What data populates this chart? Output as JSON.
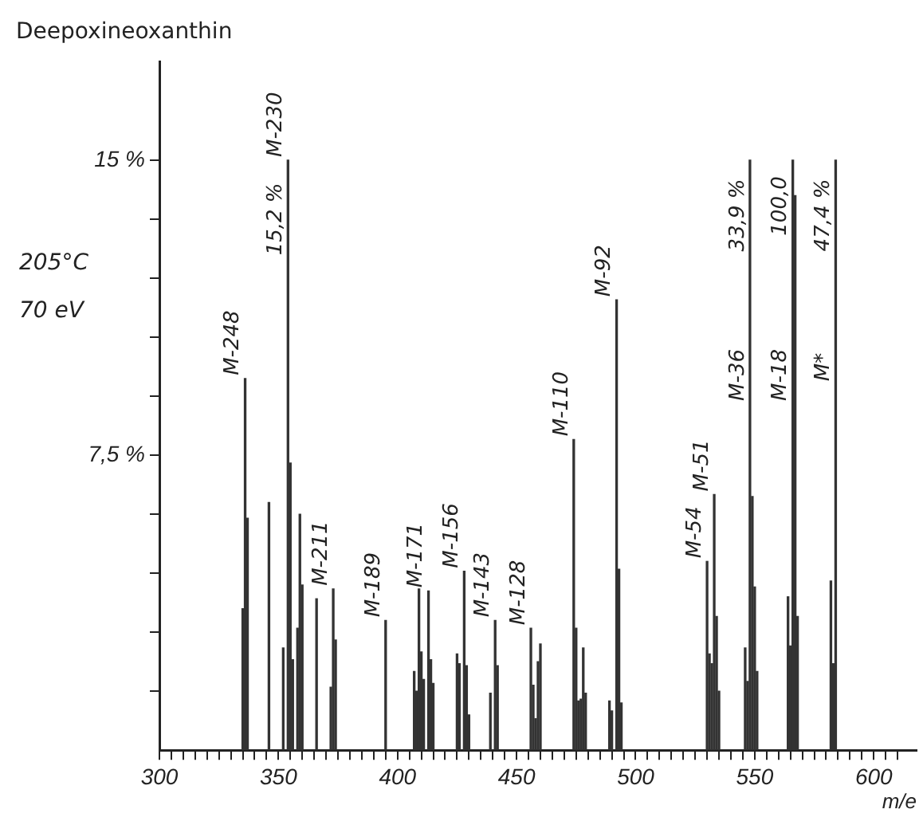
{
  "chart_data": {
    "type": "bar",
    "title": "Deepoxineoxanthin",
    "xlabel": "m/e",
    "color": "#333333",
    "grid": false,
    "legend": false,
    "x": [
      335,
      336,
      337,
      346,
      352,
      354,
      355,
      356,
      358,
      359,
      360,
      366,
      372,
      373,
      374,
      395,
      407,
      408,
      409,
      410,
      411,
      413,
      414,
      415,
      425,
      426,
      428,
      429,
      430,
      439,
      441,
      442,
      456,
      457,
      458,
      459,
      460,
      474,
      475,
      476,
      477,
      478,
      479,
      489,
      490,
      492,
      493,
      494,
      530,
      531,
      532,
      533,
      534,
      535,
      546,
      547,
      548,
      549,
      550,
      551,
      564,
      565,
      566,
      567,
      568,
      582,
      583,
      584
    ],
    "values": [
      3.6,
      9.45,
      5.9,
      6.3,
      2.6,
      15,
      7.3,
      2.3,
      3.1,
      6.0,
      4.2,
      3.85,
      1.6,
      4.1,
      2.8,
      3.3,
      2.0,
      1.5,
      4.1,
      2.5,
      1.8,
      4.05,
      2.3,
      1.7,
      2.45,
      2.2,
      4.55,
      2.15,
      0.9,
      1.45,
      3.3,
      2.15,
      3.1,
      1.65,
      0.8,
      2.25,
      2.7,
      7.9,
      3.1,
      1.25,
      1.3,
      2.6,
      1.45,
      1.25,
      1.0,
      11.45,
      4.6,
      1.2,
      4.8,
      2.45,
      2.2,
      6.5,
      3.4,
      1.5,
      2.6,
      1.75,
      15,
      6.45,
      4.15,
      2.0,
      3.9,
      2.65,
      15,
      14.1,
      3.4,
      4.3,
      2.2,
      15
    ],
    "xlim": [
      300,
      618
    ],
    "xticks": [
      300,
      {
        "value": 305,
        "label": null
      },
      {
        "value": 310,
        "label": null
      },
      {
        "value": 315,
        "label": null
      },
      {
        "value": 320,
        "label": null
      },
      {
        "value": 325,
        "label": null
      },
      {
        "value": 330,
        "label": null
      },
      {
        "value": 335,
        "label": null
      },
      {
        "value": 340,
        "label": null
      },
      {
        "value": 345,
        "label": null
      },
      350,
      {
        "value": 355,
        "label": null
      },
      {
        "value": 360,
        "label": null
      },
      {
        "value": 365,
        "label": null
      },
      {
        "value": 370,
        "label": null
      },
      {
        "value": 375,
        "label": null
      },
      {
        "value": 380,
        "label": null
      },
      {
        "value": 385,
        "label": null
      },
      {
        "value": 390,
        "label": null
      },
      {
        "value": 395,
        "label": null
      },
      400,
      {
        "value": 405,
        "label": null
      },
      {
        "value": 410,
        "label": null
      },
      {
        "value": 415,
        "label": null
      },
      {
        "value": 420,
        "label": null
      },
      {
        "value": 425,
        "label": null
      },
      {
        "value": 430,
        "label": null
      },
      {
        "value": 435,
        "label": null
      },
      {
        "value": 440,
        "label": null
      },
      {
        "value": 445,
        "label": null
      },
      450,
      {
        "value": 455,
        "label": null
      },
      {
        "value": 460,
        "label": null
      },
      {
        "value": 465,
        "label": null
      },
      {
        "value": 470,
        "label": null
      },
      {
        "value": 475,
        "label": null
      },
      {
        "value": 480,
        "label": null
      },
      {
        "value": 485,
        "label": null
      },
      {
        "value": 490,
        "label": null
      },
      {
        "value": 495,
        "label": null
      },
      500,
      {
        "value": 505,
        "label": null
      },
      {
        "value": 510,
        "label": null
      },
      {
        "value": 515,
        "label": null
      },
      {
        "value": 520,
        "label": null
      },
      {
        "value": 525,
        "label": null
      },
      {
        "value": 530,
        "label": null
      },
      {
        "value": 535,
        "label": null
      },
      {
        "value": 540,
        "label": null
      },
      {
        "value": 545,
        "label": null
      },
      550,
      {
        "value": 555,
        "label": null
      },
      {
        "value": 560,
        "label": null
      },
      {
        "value": 565,
        "label": null
      },
      {
        "value": 570,
        "label": null
      },
      {
        "value": 575,
        "label": null
      },
      {
        "value": 580,
        "label": null
      },
      {
        "value": 585,
        "label": null
      },
      {
        "value": 590,
        "label": null
      },
      {
        "value": 595,
        "label": null
      },
      600,
      {
        "value": 605,
        "label": null
      },
      {
        "value": 610,
        "label": null
      }
    ],
    "ylim": [
      0,
      17.5
    ],
    "yticks": [
      {
        "value": 1.5,
        "label": null
      },
      {
        "value": 3,
        "label": null
      },
      {
        "value": 4.5,
        "label": null
      },
      {
        "value": 6,
        "label": null
      },
      {
        "value": 7.5,
        "label": "7,5 %"
      },
      {
        "value": 9,
        "label": null
      },
      {
        "value": 10.5,
        "label": null
      },
      {
        "value": 12,
        "label": null
      },
      {
        "value": 13.5,
        "label": null
      },
      {
        "value": 15,
        "label": "15 %"
      }
    ],
    "annotations": [
      "205°C",
      "70 eV",
      {
        "text": "M-248",
        "x": 336,
        "y": 9.45
      },
      {
        "text": "M-230",
        "x": 354,
        "y": 15
      },
      {
        "text": "15,2 %",
        "x": 354,
        "y": 12.5
      },
      {
        "text": "M-211",
        "x": 373,
        "y": 4.1
      },
      {
        "text": "M-189",
        "x": 395,
        "y": 3.3
      },
      {
        "text": "M-171",
        "x": 413,
        "y": 4.05
      },
      {
        "text": "M-156",
        "x": 428,
        "y": 4.55
      },
      {
        "text": "M-143",
        "x": 441,
        "y": 3.3
      },
      {
        "text": "M-128",
        "x": 456,
        "y": 3.1
      },
      {
        "text": "M-110",
        "x": 474,
        "y": 7.9
      },
      {
        "text": "M-92",
        "x": 492,
        "y": 11.45
      },
      {
        "text": "M-54",
        "x": 530,
        "y": 4.8
      },
      {
        "text": "M-51",
        "x": 533,
        "y": 6.5
      },
      {
        "text": "M-36",
        "x": 548,
        "y": 8.8
      },
      {
        "text": "33,9 %",
        "x": 548,
        "y": 12.6
      },
      {
        "text": "M-18",
        "x": 566,
        "y": 8.8
      },
      {
        "text": "100,0",
        "x": 566,
        "y": 13
      },
      {
        "text": "M*",
        "x": 584,
        "y": 9.3
      },
      {
        "text": "47,4 %",
        "x": 584,
        "y": 12.6
      }
    ]
  }
}
